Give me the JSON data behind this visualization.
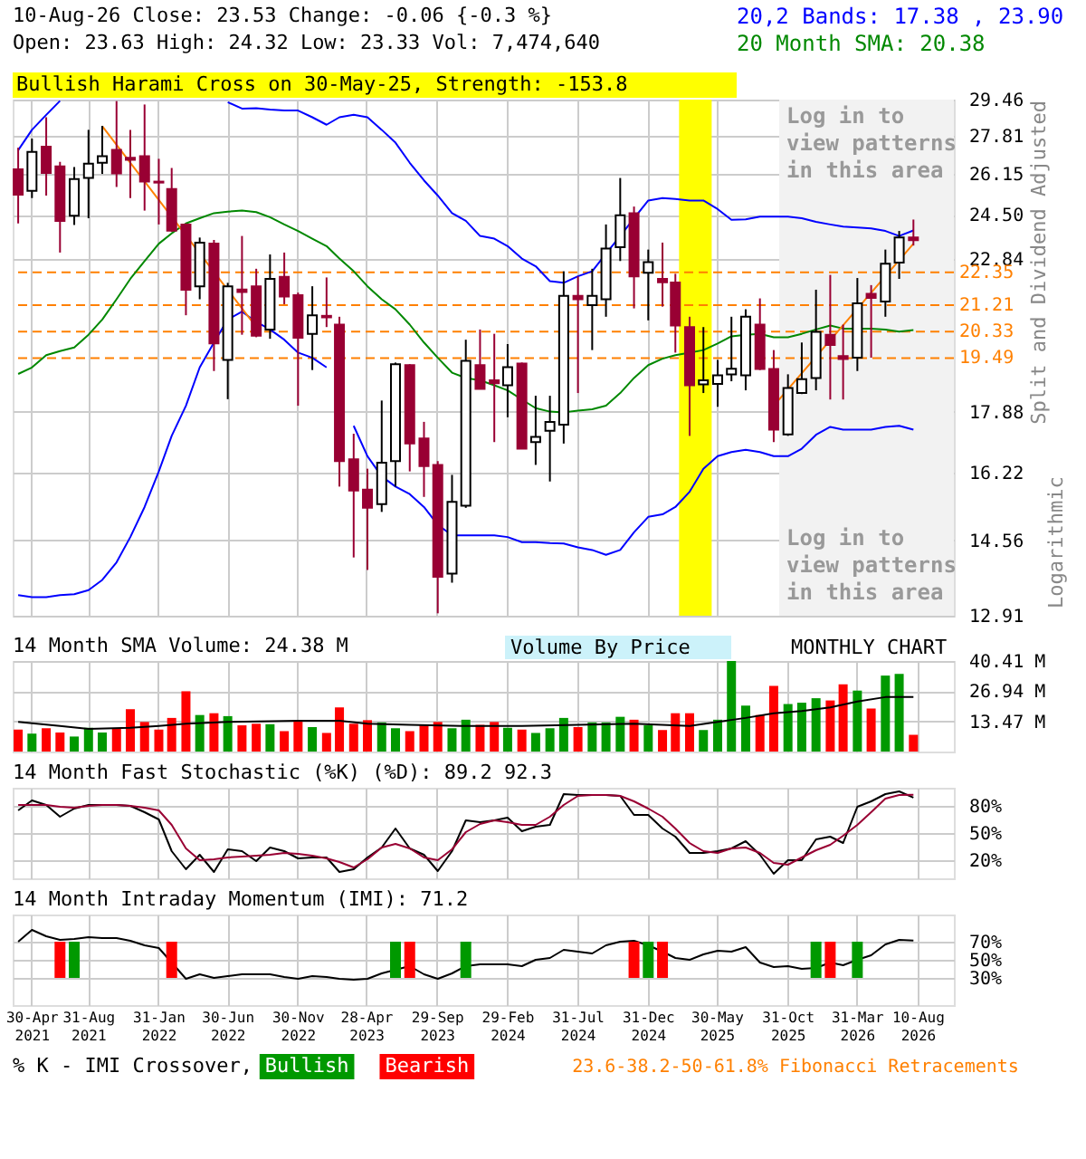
{
  "chart_data": [
    {
      "type": "candlestick",
      "title": "10-Aug-26   Close: 23.53   Change: -0.06 {-0.3 %}",
      "subtitle": "Open: 23.63   High: 24.32   Low: 23.33   Vol: 7,474,640",
      "ylabel": "Split and Dividend Adjusted",
      "annotations": [
        "Logarithmic"
      ],
      "x": [
        "2021-04",
        "2021-05",
        "2021-06",
        "2021-07",
        "2021-08",
        "2021-09",
        "2021-10",
        "2021-11",
        "2021-12",
        "2022-01",
        "2022-02",
        "2022-03",
        "2022-04",
        "2022-05",
        "2022-06",
        "2022-07",
        "2022-08",
        "2022-09",
        "2022-10",
        "2022-11",
        "2022-12",
        "2023-01",
        "2023-02",
        "2023-03",
        "2023-04",
        "2023-05",
        "2023-06",
        "2023-07",
        "2023-08",
        "2023-09",
        "2023-10",
        "2023-11",
        "2023-12",
        "2024-01",
        "2024-02",
        "2024-03",
        "2024-04",
        "2024-05",
        "2024-06",
        "2024-07",
        "2024-08",
        "2024-09",
        "2024-10",
        "2024-11",
        "2024-12",
        "2025-01",
        "2025-02",
        "2025-03",
        "2025-04",
        "2025-05",
        "2025-06",
        "2025-07",
        "2025-08",
        "2025-09",
        "2025-10",
        "2025-11",
        "2025-12",
        "2026-01",
        "2026-02",
        "2026-03",
        "2026-04",
        "2026-05",
        "2026-06",
        "2026-07",
        "2026-08"
      ],
      "ohlc": [
        [
          26.35,
          27.28,
          24.17,
          25.31
        ],
        [
          25.46,
          27.68,
          25.17,
          27.1
        ],
        [
          27.32,
          28.64,
          25.27,
          26.2
        ],
        [
          26.48,
          26.67,
          23.07,
          24.27
        ],
        [
          24.47,
          26.45,
          24.11,
          25.95
        ],
        [
          25.99,
          28.07,
          24.37,
          26.59
        ],
        [
          26.63,
          28.25,
          26.16,
          26.91
        ],
        [
          27.19,
          29.39,
          25.62,
          26.18
        ],
        [
          26.84,
          28.07,
          25.17,
          26.76
        ],
        [
          26.91,
          29.23,
          24.67,
          25.84
        ],
        [
          25.84,
          26.8,
          24.13,
          25.8
        ],
        [
          25.54,
          26.41,
          23.85,
          23.89
        ],
        [
          24.13,
          24.17,
          20.87,
          21.74
        ],
        [
          21.86,
          23.63,
          21.41,
          23.44
        ],
        [
          23.4,
          23.54,
          19.09,
          19.95
        ],
        [
          19.43,
          21.98,
          18.25,
          21.86
        ],
        [
          21.75,
          23.69,
          20.23,
          21.66
        ],
        [
          21.86,
          22.48,
          20.15,
          20.2
        ],
        [
          20.4,
          23.0,
          20.1,
          22.12
        ],
        [
          22.19,
          23.07,
          21.24,
          21.5
        ],
        [
          21.55,
          21.64,
          18.06,
          20.13
        ],
        [
          20.26,
          21.86,
          19.12,
          20.87
        ],
        [
          20.85,
          22.17,
          20.48,
          20.8
        ],
        [
          20.56,
          20.82,
          15.87,
          16.53
        ],
        [
          16.58,
          17.27,
          14.17,
          15.77
        ],
        [
          15.79,
          16.33,
          13.89,
          15.34
        ],
        [
          15.43,
          18.21,
          15.24,
          16.49
        ],
        [
          16.53,
          19.35,
          15.87,
          19.3
        ],
        [
          19.27,
          19.3,
          16.26,
          17.0
        ],
        [
          17.14,
          17.6,
          15.61,
          16.4
        ],
        [
          16.43,
          16.53,
          12.96,
          13.74
        ],
        [
          13.81,
          16.17,
          13.61,
          15.49
        ],
        [
          15.39,
          20.07,
          15.34,
          19.4
        ],
        [
          19.27,
          20.4,
          18.54,
          18.55
        ],
        [
          18.81,
          20.26,
          17.04,
          18.72
        ],
        [
          18.66,
          19.93,
          17.73,
          19.21
        ],
        [
          19.32,
          19.35,
          16.85,
          16.86
        ],
        [
          17.04,
          18.35,
          16.43,
          17.18
        ],
        [
          17.35,
          18.35,
          16.0,
          17.6
        ],
        [
          17.52,
          22.39,
          17.0,
          21.53
        ],
        [
          21.53,
          22.21,
          18.43,
          21.41
        ],
        [
          21.21,
          22.48,
          19.74,
          21.53
        ],
        [
          21.41,
          24.13,
          20.82,
          23.22
        ],
        [
          23.27,
          25.99,
          22.76,
          24.49
        ],
        [
          24.57,
          24.83,
          21.1,
          22.21
        ],
        [
          22.34,
          23.18,
          20.7,
          22.72
        ],
        [
          22.12,
          23.44,
          21.16,
          22.0
        ],
        [
          21.99,
          22.3,
          19.66,
          20.53
        ],
        [
          20.48,
          20.82,
          17.21,
          18.66
        ],
        [
          18.69,
          20.48,
          18.43,
          18.81
        ],
        [
          18.7,
          19.43,
          18.03,
          18.96
        ],
        [
          18.99,
          20.82,
          18.78,
          19.16
        ],
        [
          18.96,
          21.07,
          18.51,
          20.82
        ],
        [
          20.56,
          21.44,
          19.12,
          19.15
        ],
        [
          19.15,
          19.74,
          17.04,
          17.38
        ],
        [
          17.25,
          18.99,
          17.21,
          18.58
        ],
        [
          18.43,
          19.98,
          18.4,
          18.84
        ],
        [
          18.88,
          21.74,
          18.51,
          20.32
        ],
        [
          20.23,
          22.26,
          18.24,
          19.9
        ],
        [
          19.55,
          20.56,
          18.24,
          19.46
        ],
        [
          19.5,
          22.15,
          19.09,
          21.27
        ],
        [
          21.6,
          21.9,
          19.5,
          21.46
        ],
        [
          21.33,
          23.18,
          20.82,
          22.66
        ],
        [
          22.7,
          23.88,
          22.12,
          23.63
        ],
        [
          23.63,
          24.32,
          23.33,
          23.53
        ]
      ],
      "series": [
        {
          "name": "20,2 Bands: 17.38 , 23.90",
          "type": "line",
          "color": "#0000ff",
          "values": [
            27.17,
            28.07,
            28.75,
            29.4,
            null,
            null,
            null,
            null,
            null,
            null,
            null,
            null,
            null,
            null,
            null,
            29.34,
            29.04,
            29.06,
            28.99,
            28.95,
            28.95,
            28.64,
            28.3,
            28.64,
            28.75,
            28.64,
            28.07,
            27.5,
            26.63,
            25.89,
            25.27,
            24.57,
            24.27,
            23.69,
            23.59,
            23.31,
            22.85,
            22.57,
            22.04,
            21.98,
            22.21,
            22.39,
            23.03,
            23.69,
            24.37,
            25.07,
            25.17,
            25.13,
            25.07,
            25.07,
            24.73,
            24.31,
            24.33,
            24.43,
            24.43,
            24.43,
            24.37,
            24.23,
            24.13,
            24.05,
            24.01,
            23.98,
            23.88,
            23.69,
            23.9
          ]
        },
        {
          "type": "line",
          "color": "#0000ff",
          "values": [
            13.34,
            13.3,
            13.3,
            13.34,
            13.36,
            13.45,
            13.67,
            14.06,
            14.64,
            15.36,
            16.26,
            17.21,
            18.06,
            19.2,
            19.98,
            20.73,
            20.99,
            20.65,
            20.4,
            20.07,
            19.66,
            19.5,
            19.2,
            null,
            17.49,
            16.66,
            16.13,
            15.87,
            15.68,
            15.36,
            14.93,
            14.68,
            14.68,
            14.68,
            14.68,
            14.64,
            14.52,
            14.52,
            14.5,
            14.49,
            14.4,
            14.34,
            14.23,
            14.34,
            14.75,
            15.12,
            15.18,
            15.36,
            15.74,
            16.33,
            16.66,
            16.77,
            16.83,
            16.77,
            16.66,
            16.66,
            16.86,
            17.24,
            17.46,
            17.38,
            17.38,
            17.38,
            17.46,
            17.49,
            17.38
          ]
        },
        {
          "name": "20 Month SMA: 20.38",
          "type": "line",
          "color": "#008800",
          "values": [
            19.0,
            19.2,
            19.58,
            19.71,
            19.82,
            20.23,
            20.73,
            21.41,
            22.12,
            22.76,
            23.4,
            23.79,
            24.17,
            24.37,
            24.57,
            24.63,
            24.67,
            24.61,
            24.41,
            24.13,
            23.88,
            23.59,
            23.31,
            22.85,
            22.39,
            21.86,
            21.41,
            21.07,
            20.56,
            19.98,
            19.5,
            19.04,
            18.88,
            18.81,
            18.66,
            18.51,
            18.24,
            17.99,
            17.89,
            17.87,
            17.92,
            17.96,
            18.06,
            18.43,
            18.88,
            19.27,
            19.47,
            19.58,
            19.66,
            19.74,
            19.95,
            20.18,
            20.23,
            20.26,
            20.15,
            20.15,
            20.26,
            20.4,
            20.53,
            20.43,
            20.43,
            20.43,
            20.4,
            20.33,
            20.38
          ]
        },
        {
          "type": "line",
          "color": "#ff8000",
          "x": [
            "2021-10",
            "2022-09"
          ],
          "values": [
            28.23,
            20.48
          ]
        },
        {
          "type": "line",
          "color": "#ff8000",
          "x": [
            "2025-10",
            "2026-08"
          ],
          "values": [
            18.06,
            23.4
          ]
        }
      ],
      "ref_lines": [
        {
          "axis": "y",
          "value": 22.35,
          "label": "22.35",
          "color": "#ff8000",
          "line_style": "dashed"
        },
        {
          "axis": "y",
          "value": 21.21,
          "label": "21.21",
          "color": "#ff8000",
          "line_style": "dashed"
        },
        {
          "axis": "y",
          "value": 20.33,
          "label": "20.33",
          "color": "#ff8000",
          "line_style": "dashed"
        },
        {
          "axis": "y",
          "value": 19.49,
          "label": "19.49",
          "color": "#ff8000",
          "line_style": "dashed"
        }
      ],
      "bands": [
        {
          "axis": "x",
          "from": "2025-10-13",
          "to": "2026-10-28",
          "label": "Log in to view patterns in this area",
          "color": "#f2f2f2"
        },
        {
          "axis": "x",
          "from": "2025-03-09",
          "to": "2025-05-19",
          "label": "Bullish Harami Cross on 30-May-25, Strength: -153.8",
          "color": "#ffff00"
        }
      ],
      "log": true,
      "ylim": [
        12.91,
        29.46
      ],
      "yticks": [
        12.91,
        14.56,
        16.22,
        17.88,
        22.84,
        {
          "value": 24.5,
          "label": "24.50"
        },
        26.15,
        27.81,
        29.46
      ],
      "xlim": [
        "2021-03-20",
        "2026-10-28"
      ],
      "xticks": [
        {
          "value": "2021-04-30",
          "label": null
        },
        {
          "value": "2021-08-31",
          "label": null
        },
        {
          "value": "2022-01-31",
          "label": null
        },
        {
          "value": "2022-06-30",
          "label": null
        },
        {
          "value": "2022-11-30",
          "label": null
        },
        {
          "value": "2023-04-28",
          "label": null
        },
        {
          "value": "2023-09-29",
          "label": null
        },
        {
          "value": "2024-02-29",
          "label": null
        },
        {
          "value": "2024-07-31",
          "label": null
        },
        {
          "value": "2024-12-31",
          "label": null
        },
        {
          "value": "2025-05-30",
          "label": null
        },
        {
          "value": "2025-10-31",
          "label": null
        },
        {
          "value": "2026-03-31",
          "label": null
        },
        {
          "value": "2026-08-10",
          "label": null
        }
      ],
      "grid": true,
      "tick_labels": "y"
    },
    {
      "type": "bar",
      "title": "14 Month SMA Volume: 24.38 M",
      "annotations": [
        "Volume By Price",
        "MONTHLY CHART"
      ],
      "x": [
        "2021-04",
        "2021-05",
        "2021-06",
        "2021-07",
        "2021-08",
        "2021-09",
        "2021-10",
        "2021-11",
        "2021-12",
        "2022-01",
        "2022-02",
        "2022-03",
        "2022-04",
        "2022-05",
        "2022-06",
        "2022-07",
        "2022-08",
        "2022-09",
        "2022-10",
        "2022-11",
        "2022-12",
        "2023-01",
        "2023-02",
        "2023-03",
        "2023-04",
        "2023-05",
        "2023-06",
        "2023-07",
        "2023-08",
        "2023-09",
        "2023-10",
        "2023-11",
        "2023-12",
        "2024-01",
        "2024-02",
        "2024-03",
        "2024-04",
        "2024-05",
        "2024-06",
        "2024-07",
        "2024-08",
        "2024-09",
        "2024-10",
        "2024-11",
        "2024-12",
        "2025-01",
        "2025-02",
        "2025-03",
        "2025-04",
        "2025-05",
        "2025-06",
        "2025-07",
        "2025-08",
        "2025-09",
        "2025-10",
        "2025-11",
        "2025-12",
        "2026-01",
        "2026-02",
        "2026-03",
        "2026-04",
        "2026-05",
        "2026-06",
        "2026-07",
        "2026-08"
      ],
      "series": [
        {
          "type": "bar",
          "values": [
            9.8,
            8.0,
            10.4,
            8.5,
            6.7,
            10.6,
            8.5,
            10.1,
            18.9,
            13.2,
            9.8,
            15.0,
            26.9,
            16.3,
            17.1,
            15.8,
            11.7,
            12.4,
            12.2,
            9.1,
            13.7,
            10.9,
            8.3,
            19.7,
            12.4,
            14.0,
            13.0,
            10.4,
            9.1,
            11.9,
            13.2,
            10.4,
            14.2,
            11.9,
            13.2,
            10.6,
            9.8,
            8.3,
            10.4,
            15.0,
            10.9,
            13.0,
            13.0,
            15.5,
            14.2,
            11.7,
            9.6,
            17.1,
            17.1,
            9.6,
            14.2,
            40.4,
            20.5,
            16.3,
            29.3,
            21.2,
            21.8,
            23.8,
            22.8,
            30.0,
            27.2,
            19.2,
            33.9,
            34.7,
            7.47
          ],
          "colors": [
            "#ff0000",
            "#009900",
            "#ff0000",
            "#ff0000",
            "#009900",
            "#009900",
            "#009900",
            "#ff0000",
            "#ff0000",
            "#ff0000",
            "#ff0000",
            "#ff0000",
            "#ff0000",
            "#009900",
            "#ff0000",
            "#009900",
            "#ff0000",
            "#ff0000",
            "#009900",
            "#ff0000",
            "#ff0000",
            "#009900",
            "#ff0000",
            "#ff0000",
            "#ff0000",
            "#ff0000",
            "#009900",
            "#009900",
            "#ff0000",
            "#ff0000",
            "#ff0000",
            "#009900",
            "#009900",
            "#ff0000",
            "#ff0000",
            "#009900",
            "#ff0000",
            "#009900",
            "#009900",
            "#009900",
            "#ff0000",
            "#009900",
            "#009900",
            "#009900",
            "#ff0000",
            "#009900",
            "#ff0000",
            "#ff0000",
            "#ff0000",
            "#009900",
            "#009900",
            "#009900",
            "#009900",
            "#ff0000",
            "#ff0000",
            "#009900",
            "#009900",
            "#009900",
            "#ff0000",
            "#ff0000",
            "#009900",
            "#ff0000",
            "#009900",
            "#009900",
            "#ff0000"
          ]
        },
        {
          "type": "line",
          "color": "#000000",
          "x": [
            "2021-04",
            "2021-07",
            "2021-09",
            "2021-12",
            "2022-02",
            "2022-04",
            "2022-07",
            "2022-12",
            "2023-03",
            "2023-05",
            "2023-08",
            "2023-12",
            "2024-04",
            "2024-08",
            "2024-12",
            "2025-04",
            "2025-06",
            "2025-08",
            "2025-10",
            "2025-12",
            "2026-02",
            "2026-04",
            "2026-06",
            "2026-08"
          ],
          "values": [
            13.2,
            11.4,
            10.1,
            10.6,
            11.4,
            12.4,
            13.2,
            13.7,
            13.7,
            12.4,
            11.9,
            11.4,
            11.4,
            11.9,
            12.4,
            11.4,
            13.2,
            15.0,
            17.1,
            18.1,
            19.7,
            22.3,
            24.3,
            24.38
          ]
        }
      ],
      "ylim": [
        0,
        40.41
      ],
      "yticks": [
        {
          "value": 13.47,
          "label": "13.47 M"
        },
        {
          "value": 26.94,
          "label": "26.94 M"
        },
        {
          "value": 40.41,
          "label": "40.41 M"
        }
      ],
      "xlim": [
        "2021-03-20",
        "2026-10-28"
      ],
      "xticks": [
        {
          "value": "2021-04-30",
          "label": null
        },
        {
          "value": "2021-08-31",
          "label": null
        },
        {
          "value": "2022-01-31",
          "label": null
        },
        {
          "value": "2022-06-30",
          "label": null
        },
        {
          "value": "2022-11-30",
          "label": null
        },
        {
          "value": "2023-04-28",
          "label": null
        },
        {
          "value": "2023-09-29",
          "label": null
        },
        {
          "value": "2024-02-29",
          "label": null
        },
        {
          "value": "2024-07-31",
          "label": null
        },
        {
          "value": "2024-12-31",
          "label": null
        },
        {
          "value": "2025-05-30",
          "label": null
        },
        {
          "value": "2025-10-31",
          "label": null
        },
        {
          "value": "2026-03-31",
          "label": null
        },
        {
          "value": "2026-08-10",
          "label": null
        }
      ],
      "grid": true,
      "tick_labels": "y"
    },
    {
      "type": "line",
      "title": "14 Month Fast Stochastic (%K) (%D): 89.2  92.3",
      "x": [
        "2021-04",
        "2021-05",
        "2021-06",
        "2021-07",
        "2021-08",
        "2021-09",
        "2021-10",
        "2021-11",
        "2021-12",
        "2022-01",
        "2022-02",
        "2022-03",
        "2022-04",
        "2022-05",
        "2022-06",
        "2022-07",
        "2022-08",
        "2022-09",
        "2022-10",
        "2022-11",
        "2022-12",
        "2023-01",
        "2023-02",
        "2023-03",
        "2023-04",
        "2023-05",
        "2023-06",
        "2023-07",
        "2023-08",
        "2023-09",
        "2023-10",
        "2023-11",
        "2023-12",
        "2024-01",
        "2024-02",
        "2024-03",
        "2024-04",
        "2024-05",
        "2024-06",
        "2024-07",
        "2024-08",
        "2024-09",
        "2024-10",
        "2024-11",
        "2024-12",
        "2025-01",
        "2025-02",
        "2025-03",
        "2025-04",
        "2025-05",
        "2025-06",
        "2025-07",
        "2025-08",
        "2025-09",
        "2025-10",
        "2025-11",
        "2025-12",
        "2026-01",
        "2026-02",
        "2026-03",
        "2026-04",
        "2026-05",
        "2026-06",
        "2026-07",
        "2026-08"
      ],
      "series": [
        {
          "color": "#000000",
          "values": [
            75,
            86,
            81,
            68,
            77,
            81,
            81,
            81,
            80,
            73,
            65,
            30,
            10,
            26,
            7,
            32,
            30,
            19,
            34,
            30,
            22,
            23,
            23,
            7,
            10,
            23,
            34,
            55,
            33,
            26,
            8,
            30,
            64,
            62,
            64,
            67,
            52,
            57,
            59,
            93,
            92,
            92,
            92,
            91,
            70,
            70,
            55,
            46,
            28,
            28,
            30,
            33,
            41,
            26,
            5,
            20,
            20,
            43,
            46,
            39,
            79,
            85,
            93,
            96,
            89.2
          ]
        },
        {
          "color": "#990033",
          "values": [
            81,
            81,
            81,
            79,
            78,
            80,
            81,
            81,
            80,
            78,
            75,
            59,
            33,
            20,
            21,
            23,
            24,
            25,
            26,
            28,
            27,
            25,
            22,
            18,
            12,
            21,
            34,
            38,
            33,
            23,
            20,
            32,
            51,
            60,
            64,
            62,
            59,
            59,
            68,
            81,
            91,
            92,
            92,
            91,
            85,
            77,
            68,
            55,
            39,
            30,
            28,
            33,
            34,
            28,
            17,
            15,
            23,
            31,
            37,
            47,
            59,
            73,
            88,
            92,
            92.3
          ]
        }
      ],
      "ylim": [
        0,
        100
      ],
      "yticks": [
        {
          "value": 20,
          "label": "20%"
        },
        {
          "value": 50,
          "label": "50%"
        },
        {
          "value": 80,
          "label": "80%"
        }
      ],
      "xlim": [
        "2021-03-20",
        "2026-10-28"
      ],
      "xticks": [
        {
          "value": "2021-04-30",
          "label": null
        },
        {
          "value": "2021-08-31",
          "label": null
        },
        {
          "value": "2022-01-31",
          "label": null
        },
        {
          "value": "2022-06-30",
          "label": null
        },
        {
          "value": "2022-11-30",
          "label": null
        },
        {
          "value": "2023-04-28",
          "label": null
        },
        {
          "value": "2023-09-29",
          "label": null
        },
        {
          "value": "2024-02-29",
          "label": null
        },
        {
          "value": "2024-07-31",
          "label": null
        },
        {
          "value": "2024-12-31",
          "label": null
        },
        {
          "value": "2025-05-30",
          "label": null
        },
        {
          "value": "2025-10-31",
          "label": null
        },
        {
          "value": "2026-03-31",
          "label": null
        },
        {
          "value": "2026-08-10",
          "label": null
        }
      ],
      "grid": true,
      "tick_labels": "y"
    },
    {
      "type": "line",
      "title": "14 Month Intraday Momentum (IMI): 71.2",
      "legend_title": "% K - IMI Crossover,",
      "annotations": [
        "23.6-38.2-50-61.8% Fibonacci Retracements"
      ],
      "x": [
        "2021-04",
        "2021-05",
        "2021-06",
        "2021-07",
        "2021-08",
        "2021-09",
        "2021-10",
        "2021-11",
        "2021-12",
        "2022-01",
        "2022-02",
        "2022-03",
        "2022-04",
        "2022-05",
        "2022-06",
        "2022-07",
        "2022-08",
        "2022-09",
        "2022-10",
        "2022-11",
        "2022-12",
        "2023-01",
        "2023-02",
        "2023-03",
        "2023-04",
        "2023-05",
        "2023-06",
        "2023-07",
        "2023-08",
        "2023-09",
        "2023-10",
        "2023-11",
        "2023-12",
        "2024-01",
        "2024-02",
        "2024-03",
        "2024-04",
        "2024-05",
        "2024-06",
        "2024-07",
        "2024-08",
        "2024-09",
        "2024-10",
        "2024-11",
        "2024-12",
        "2025-01",
        "2025-02",
        "2025-03",
        "2025-04",
        "2025-05",
        "2025-06",
        "2025-07",
        "2025-08",
        "2025-09",
        "2025-10",
        "2025-11",
        "2025-12",
        "2026-01",
        "2026-02",
        "2026-03",
        "2026-04",
        "2026-05",
        "2026-06",
        "2026-07",
        "2026-08"
      ],
      "series": [
        {
          "type": "line",
          "color": "#000000",
          "values": [
            70,
            83,
            76,
            72,
            73,
            75,
            74,
            74,
            71,
            66,
            63,
            47,
            29,
            34,
            30,
            32,
            34,
            34,
            34,
            31,
            29,
            32,
            31,
            29,
            28,
            29,
            35,
            39,
            43,
            34,
            29,
            35,
            43,
            45,
            45,
            45,
            43,
            50,
            52,
            61,
            59,
            57,
            66,
            70,
            71,
            66,
            59,
            52,
            50,
            56,
            60,
            59,
            64,
            47,
            42,
            43,
            40,
            41,
            47,
            44,
            50,
            55,
            67,
            72,
            71.2
          ]
        },
        {
          "name": "Bullish",
          "type": "bar",
          "color": "#009900",
          "x": [
            "2021-08",
            "2023-07",
            "2023-12",
            "2025-01",
            "2026-01",
            "2026-04"
          ],
          "base": [
            30,
            30,
            30,
            30,
            30,
            30
          ],
          "values": [
            40,
            40,
            40,
            40,
            40,
            40
          ]
        },
        {
          "name": "Bearish",
          "type": "bar",
          "color": "#ff0000",
          "x": [
            "2021-07",
            "2022-03",
            "2023-08",
            "2024-12",
            "2025-02",
            "2026-02"
          ],
          "base": [
            30,
            30,
            30,
            30,
            30,
            30
          ],
          "values": [
            40,
            40,
            40,
            40,
            40,
            40
          ]
        }
      ],
      "ylim": [
        0,
        100
      ],
      "yticks": [
        {
          "value": 30,
          "label": "30%"
        },
        {
          "value": 50,
          "label": "50%"
        },
        {
          "value": 70,
          "label": "70%"
        }
      ],
      "xlim": [
        "2021-03-20",
        "2026-10-28"
      ],
      "xticks": [
        {
          "value": "2021-04-30",
          "label": "30-Apr 2021"
        },
        {
          "value": "2021-08-31",
          "label": "31-Aug 2021"
        },
        {
          "value": "2022-01-31",
          "label": "31-Jan 2022"
        },
        {
          "value": "2022-06-30",
          "label": "30-Jun 2022"
        },
        {
          "value": "2022-11-30",
          "label": "30-Nov 2022"
        },
        {
          "value": "2023-04-28",
          "label": "28-Apr 2023"
        },
        {
          "value": "2023-09-29",
          "label": "29-Sep 2023"
        },
        {
          "value": "2024-02-29",
          "label": "29-Feb 2024"
        },
        {
          "value": "2024-07-31",
          "label": "31-Jul 2024"
        },
        {
          "value": "2024-12-31",
          "label": "31-Dec 2024"
        },
        {
          "value": "2025-05-30",
          "label": "30-May 2025"
        },
        {
          "value": "2025-10-31",
          "label": "31-Oct 2025"
        },
        {
          "value": "2026-03-31",
          "label": "31-Mar 2026"
        },
        {
          "value": "2026-08-10",
          "label": "10-Aug 2026"
        }
      ],
      "grid": true,
      "legend": "bottom"
    }
  ]
}
